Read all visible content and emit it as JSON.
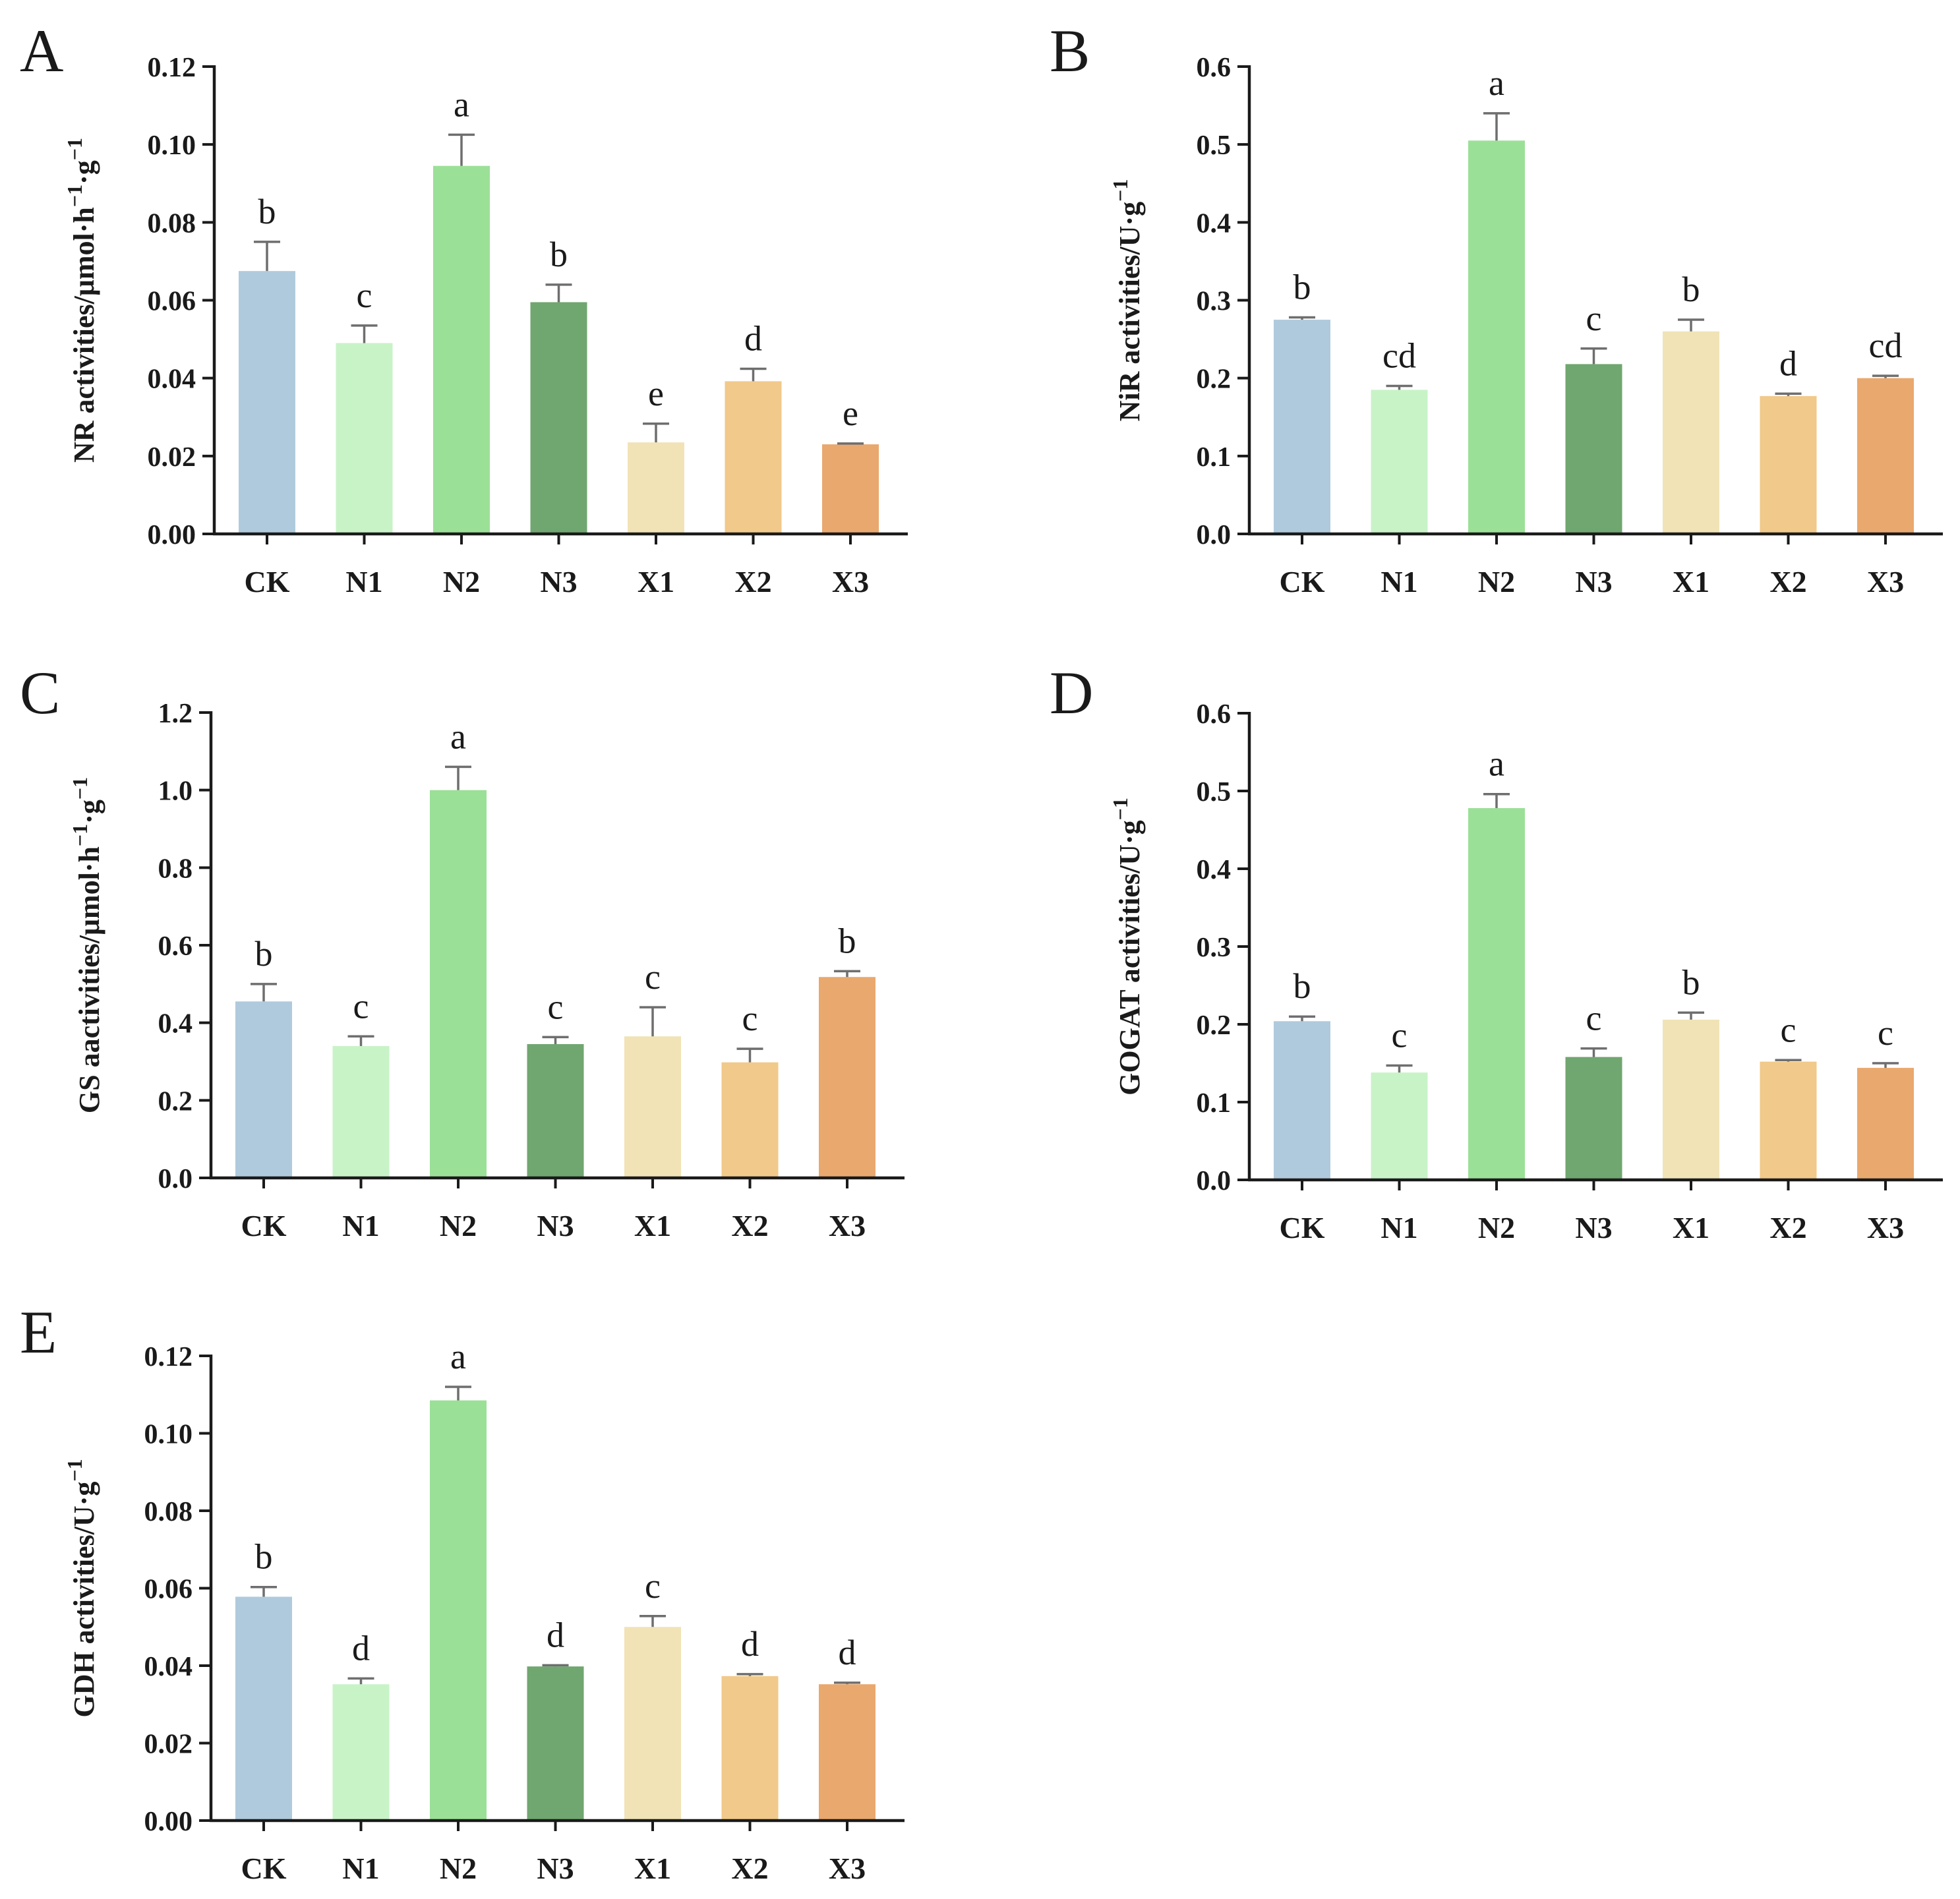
{
  "colors": {
    "axis": "#1a1a1a",
    "error_bar": "#6e6e6e",
    "bars": [
      "#b0cadd",
      "#c8f3c7",
      "#9be097",
      "#70a670",
      "#f1e3b6",
      "#f1c98a",
      "#e9a86e"
    ]
  },
  "chart_data": [
    {
      "panel": "A",
      "type": "bar",
      "ylabel": "NR activities/μmol·h⁻¹·g⁻¹",
      "categories": [
        "CK",
        "N1",
        "N2",
        "N3",
        "X1",
        "X2",
        "X3"
      ],
      "values": [
        0.0675,
        0.049,
        0.0945,
        0.0595,
        0.0235,
        0.0392,
        0.023
      ],
      "errors": [
        0.0075,
        0.0045,
        0.008,
        0.0045,
        0.0048,
        0.0032,
        0.0002
      ],
      "significance": [
        "b",
        "c",
        "a",
        "b",
        "e",
        "d",
        "e"
      ],
      "ylim": [
        0,
        0.12
      ],
      "yticks": [
        0,
        0.02,
        0.04,
        0.06,
        0.08,
        0.1,
        0.12
      ],
      "ytick_labels": [
        "0.00",
        "0.02",
        "0.04",
        "0.06",
        "0.08",
        "0.10",
        "0.12"
      ]
    },
    {
      "panel": "B",
      "type": "bar",
      "ylabel": "NiR activities/U·g⁻¹",
      "categories": [
        "CK",
        "N1",
        "N2",
        "N3",
        "X1",
        "X2",
        "X3"
      ],
      "values": [
        0.275,
        0.185,
        0.505,
        0.218,
        0.26,
        0.177,
        0.2
      ],
      "errors": [
        0.003,
        0.005,
        0.035,
        0.02,
        0.015,
        0.003,
        0.003
      ],
      "significance": [
        "b",
        "cd",
        "a",
        "c",
        "b",
        "d",
        "cd"
      ],
      "ylim": [
        0,
        0.6
      ],
      "yticks": [
        0,
        0.1,
        0.2,
        0.3,
        0.4,
        0.5,
        0.6
      ],
      "ytick_labels": [
        "0.0",
        "0.1",
        "0.2",
        "0.3",
        "0.4",
        "0.5",
        "0.6"
      ]
    },
    {
      "panel": "C",
      "type": "bar",
      "ylabel": "GS aactivities/μmol·h⁻¹·g⁻¹",
      "categories": [
        "CK",
        "N1",
        "N2",
        "N3",
        "X1",
        "X2",
        "X3"
      ],
      "values": [
        0.455,
        0.34,
        1.0,
        0.345,
        0.365,
        0.298,
        0.518
      ],
      "errors": [
        0.045,
        0.025,
        0.06,
        0.018,
        0.075,
        0.035,
        0.015
      ],
      "significance": [
        "b",
        "c",
        "a",
        "c",
        "c",
        "c",
        "b"
      ],
      "ylim": [
        0,
        1.2
      ],
      "yticks": [
        0,
        0.2,
        0.4,
        0.6,
        0.8,
        1.0,
        1.2
      ],
      "ytick_labels": [
        "0.0",
        "0.2",
        "0.4",
        "0.6",
        "0.8",
        "1.0",
        "1.2"
      ]
    },
    {
      "panel": "D",
      "type": "bar",
      "ylabel": "GOGAT activities/U·g⁻¹",
      "categories": [
        "CK",
        "N1",
        "N2",
        "N3",
        "X1",
        "X2",
        "X3"
      ],
      "values": [
        0.204,
        0.138,
        0.478,
        0.158,
        0.206,
        0.152,
        0.144
      ],
      "errors": [
        0.006,
        0.009,
        0.018,
        0.011,
        0.009,
        0.002,
        0.006
      ],
      "significance": [
        "b",
        "c",
        "a",
        "c",
        "b",
        "c",
        "c"
      ],
      "ylim": [
        0,
        0.6
      ],
      "yticks": [
        0,
        0.1,
        0.2,
        0.3,
        0.4,
        0.5,
        0.6
      ],
      "ytick_labels": [
        "0.0",
        "0.1",
        "0.2",
        "0.3",
        "0.4",
        "0.5",
        "0.6"
      ]
    },
    {
      "panel": "E",
      "type": "bar",
      "ylabel": "GDH activities/U·g⁻¹",
      "categories": [
        "CK",
        "N1",
        "N2",
        "N3",
        "X1",
        "X2",
        "X3"
      ],
      "values": [
        0.0578,
        0.0352,
        0.1085,
        0.0398,
        0.05,
        0.0373,
        0.0352
      ],
      "errors": [
        0.0025,
        0.0015,
        0.0035,
        0.0003,
        0.0028,
        0.0005,
        0.0004
      ],
      "significance": [
        "b",
        "d",
        "a",
        "d",
        "c",
        "d",
        "d"
      ],
      "ylim": [
        0,
        0.12
      ],
      "yticks": [
        0,
        0.02,
        0.04,
        0.06,
        0.08,
        0.1,
        0.12
      ],
      "ytick_labels": [
        "0.00",
        "0.02",
        "0.04",
        "0.06",
        "0.08",
        "0.10",
        "0.12"
      ]
    }
  ]
}
